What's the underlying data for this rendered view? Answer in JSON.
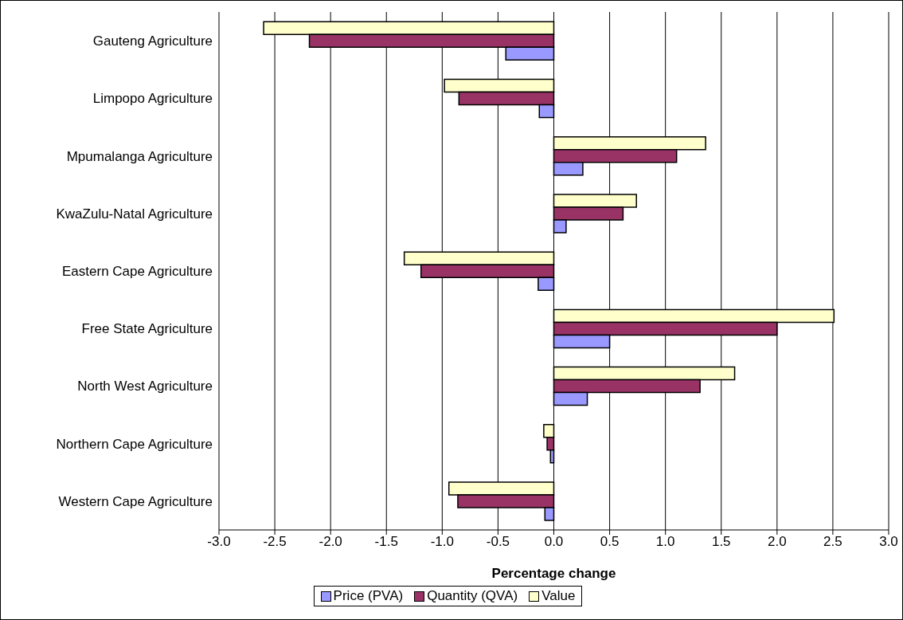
{
  "chart_data": {
    "type": "bar",
    "orientation": "horizontal",
    "xlabel": "Percentage change",
    "categories": [
      "Gauteng Agriculture",
      "Limpopo Agriculture",
      "Mpumalanga Agriculture",
      "KwaZulu-Natal Agriculture",
      "Eastern Cape Agriculture",
      "Free State Agriculture",
      "North West Agriculture",
      "Northern Cape Agriculture",
      "Western Cape Agriculture"
    ],
    "series": [
      {
        "name": "Price (PVA)",
        "color": "#9999ff",
        "values": [
          -0.43,
          -0.13,
          0.26,
          0.11,
          -0.14,
          0.5,
          0.3,
          -0.03,
          -0.08
        ]
      },
      {
        "name": "Quantity (QVA)",
        "color": "#993366",
        "values": [
          -2.19,
          -0.85,
          1.1,
          0.62,
          -1.19,
          2.0,
          1.31,
          -0.06,
          -0.86
        ]
      },
      {
        "name": "Value",
        "color": "#ffffcc",
        "values": [
          -2.6,
          -0.98,
          1.36,
          0.74,
          -1.34,
          2.51,
          1.62,
          -0.09,
          -0.94
        ]
      }
    ],
    "xlim": [
      -3,
      3
    ],
    "xticks": [
      {
        "value": -3,
        "label": "-3.0"
      },
      {
        "value": -2.5,
        "label": "-2.5"
      },
      {
        "value": -2,
        "label": "-2.0"
      },
      {
        "value": -1.5,
        "label": "-1.5"
      },
      {
        "value": -1,
        "label": "-1.0"
      },
      {
        "value": -0.5,
        "label": "-0.5"
      },
      {
        "value": 0,
        "label": "0.0"
      },
      {
        "value": 0.5,
        "label": "0.5"
      },
      {
        "value": 1,
        "label": "1.0"
      },
      {
        "value": 1.5,
        "label": "1.5"
      },
      {
        "value": 2,
        "label": "2.0"
      },
      {
        "value": 2.5,
        "label": "2.5"
      },
      {
        "value": 3,
        "label": "3.0"
      }
    ],
    "grid": "x",
    "legend": "bottom"
  }
}
